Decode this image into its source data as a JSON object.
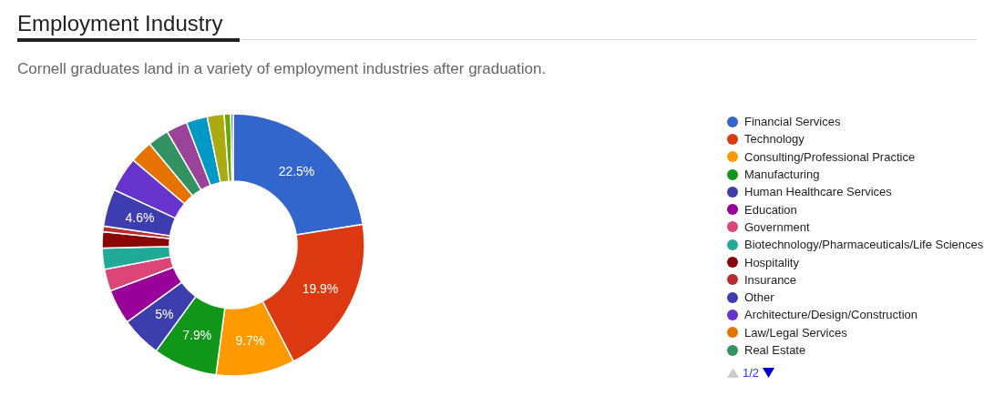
{
  "chart_data": {
    "type": "donut",
    "title": "Employment Industry",
    "subtitle": "Cornell graduates land in a variety of employment industries after graduation.",
    "categories": [
      "Financial Services",
      "Technology",
      "Consulting/Professional Practice",
      "Manufacturing",
      "Human Healthcare Services",
      "Education",
      "Government",
      "Biotechnology/Pharmaceuticals/Life Sciences",
      "Hospitality",
      "Insurance",
      "Other",
      "Architecture/Design/Construction",
      "Law/Legal Services",
      "Real Estate",
      null,
      null,
      null,
      null,
      null
    ],
    "values": [
      22.5,
      19.9,
      9.7,
      7.9,
      5,
      4.3,
      2.7,
      2.6,
      2.0,
      0.7,
      4.6,
      4.3,
      2.8,
      2.6,
      2.6,
      2.6,
      2.1,
      0.8,
      0.3
    ],
    "value_labels": [
      "22.5%",
      "19.9%",
      "9.7%",
      "7.9%",
      "5%",
      null,
      null,
      null,
      null,
      null,
      "4.6%",
      null,
      null,
      null,
      null,
      null,
      null,
      null,
      null
    ],
    "colors": [
      "#3366cc",
      "#dc3912",
      "#ff9900",
      "#109618",
      "#3b3eac",
      "#990099",
      "#dd4477",
      "#22aa99",
      "#8b0707",
      "#b82e2e",
      "#3d3db0",
      "#6633cc",
      "#e67300",
      "#329262",
      "#994499",
      "#0099c6",
      "#aaaa11",
      "#66aa00",
      "#5574a6"
    ],
    "legend": "right",
    "annotations": [
      "1/2"
    ]
  }
}
